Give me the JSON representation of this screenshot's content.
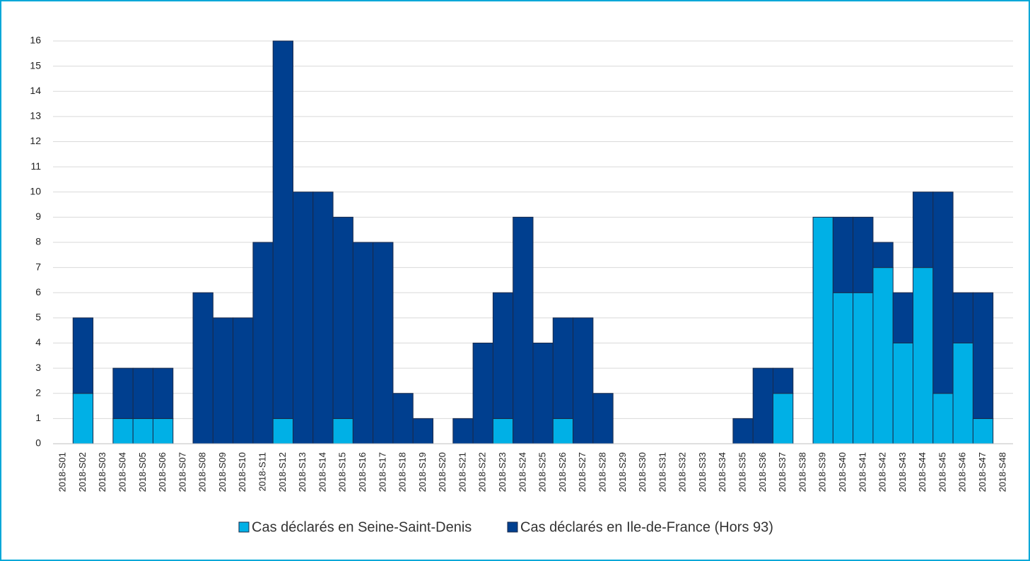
{
  "chart_data": {
    "type": "bar",
    "stacked": true,
    "categories": [
      "2018-S01",
      "2018-S02",
      "2018-S03",
      "2018-S04",
      "2018-S05",
      "2018-S06",
      "2018-S07",
      "2018-S08",
      "2018-S09",
      "2018-S10",
      "2018-S11",
      "2018-S12",
      "2018-S13",
      "2018-S14",
      "2018-S15",
      "2018-S16",
      "2018-S17",
      "2018-S18",
      "2018-S19",
      "2018-S20",
      "2018-S21",
      "2018-S22",
      "2018-S23",
      "2018-S24",
      "2018-S25",
      "2018-S26",
      "2018-S27",
      "2018-S28",
      "2018-S29",
      "2018-S30",
      "2018-S31",
      "2018-S32",
      "2018-S33",
      "2018-S34",
      "2018-S35",
      "2018-S36",
      "2018-S37",
      "2018-S38",
      "2018-S39",
      "2018-S40",
      "2018-S41",
      "2018-S42",
      "2018-S43",
      "2018-S44",
      "2018-S45",
      "2018-S46",
      "2018-S47",
      "2018-S48"
    ],
    "series": [
      {
        "name": "Cas déclarés en Seine-Saint-Denis",
        "color": "#00b0e6",
        "values": [
          0,
          2,
          0,
          1,
          1,
          1,
          0,
          0,
          0,
          0,
          0,
          1,
          0,
          0,
          1,
          0,
          0,
          0,
          0,
          0,
          0,
          0,
          1,
          0,
          0,
          1,
          0,
          0,
          0,
          0,
          0,
          0,
          0,
          0,
          0,
          0,
          2,
          0,
          9,
          6,
          6,
          7,
          4,
          7,
          2,
          4,
          1,
          0
        ]
      },
      {
        "name": "Cas déclarés en Ile-de-France (Hors 93)",
        "color": "#003f8f",
        "values": [
          0,
          3,
          0,
          2,
          2,
          2,
          0,
          6,
          5,
          5,
          8,
          15,
          10,
          10,
          8,
          8,
          8,
          2,
          1,
          0,
          1,
          4,
          5,
          9,
          4,
          4,
          5,
          2,
          0,
          0,
          0,
          0,
          0,
          0,
          1,
          3,
          1,
          0,
          0,
          3,
          3,
          1,
          2,
          3,
          8,
          2,
          5,
          0
        ]
      }
    ],
    "ylim": [
      0,
      16
    ],
    "yticks": [
      0,
      1,
      2,
      3,
      4,
      5,
      6,
      7,
      8,
      9,
      10,
      11,
      12,
      13,
      14,
      15,
      16
    ],
    "grid": true
  }
}
